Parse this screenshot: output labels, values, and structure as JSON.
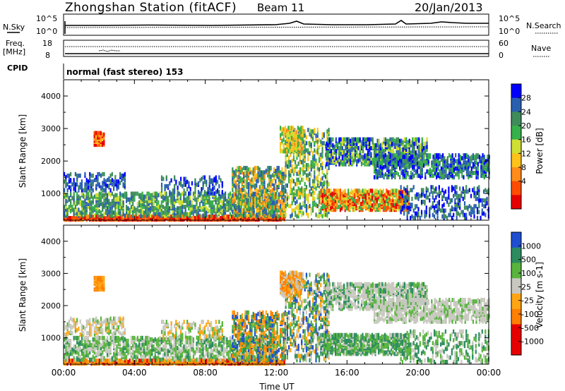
{
  "header": {
    "station": "Zhongshan Station (fitACF)",
    "beam": "Beam 11",
    "date": "20/Jan/2013"
  },
  "top_strip": {
    "left_label": "N.Sky",
    "right_label": "N.Search",
    "left_ticks": [
      "10^5",
      "10^0"
    ],
    "right_ticks": [
      "10^5",
      "10^0"
    ]
  },
  "freq_strip": {
    "left_label_line1": "Freq.",
    "left_label_line2": "[MHz]",
    "left_ticks": [
      "18",
      "8"
    ],
    "right_label": "Nave",
    "right_ticks": [
      "60",
      "0"
    ]
  },
  "cpid": {
    "label": "CPID",
    "text": "normal (fast stereo) 153"
  },
  "colors": {
    "power_scale": [
      "#0000ff",
      "#2a5fb0",
      "#3f8c5a",
      "#36b04a",
      "#cfe033",
      "#ffc21a",
      "#ff8c1a",
      "#ff4d00",
      "#e60000"
    ],
    "velocity_scale": [
      "#1f4fd0",
      "#2c8c5f",
      "#58b43d",
      "#c8c8c0",
      "#ffa514",
      "#ff7f00",
      "#e60000"
    ]
  },
  "chart_data": [
    {
      "type": "heatmap",
      "name": "power-panel",
      "ylabel": "Slant Range [km]",
      "ylim": [
        180,
        4500
      ],
      "yticks": [
        "4000",
        "3000",
        "2000",
        "1000"
      ],
      "xlim": [
        "00:00",
        "24:00"
      ],
      "colorbar_label": "Power [dB]",
      "colorbar_ticks": [
        "28",
        "24",
        "20",
        "16",
        "12",
        "8",
        "4"
      ],
      "colorbar_range": [
        0,
        32
      ]
    },
    {
      "type": "heatmap",
      "name": "velocity-panel",
      "ylabel": "Slant Range [km]",
      "ylim": [
        180,
        4500
      ],
      "yticks": [
        "4000",
        "3000",
        "2000",
        "1000"
      ],
      "xlabel": "Time UT",
      "xticks": [
        "00:00",
        "04:00",
        "08:00",
        "12:00",
        "16:00",
        "20:00",
        "00:00"
      ],
      "xlim": [
        "00:00",
        "24:00"
      ],
      "colorbar_label": "Velocity [m s-1]",
      "colorbar_ticks": [
        "1000",
        "500",
        "100",
        "25",
        "-25",
        "-100",
        "-500",
        "-1000"
      ]
    }
  ]
}
